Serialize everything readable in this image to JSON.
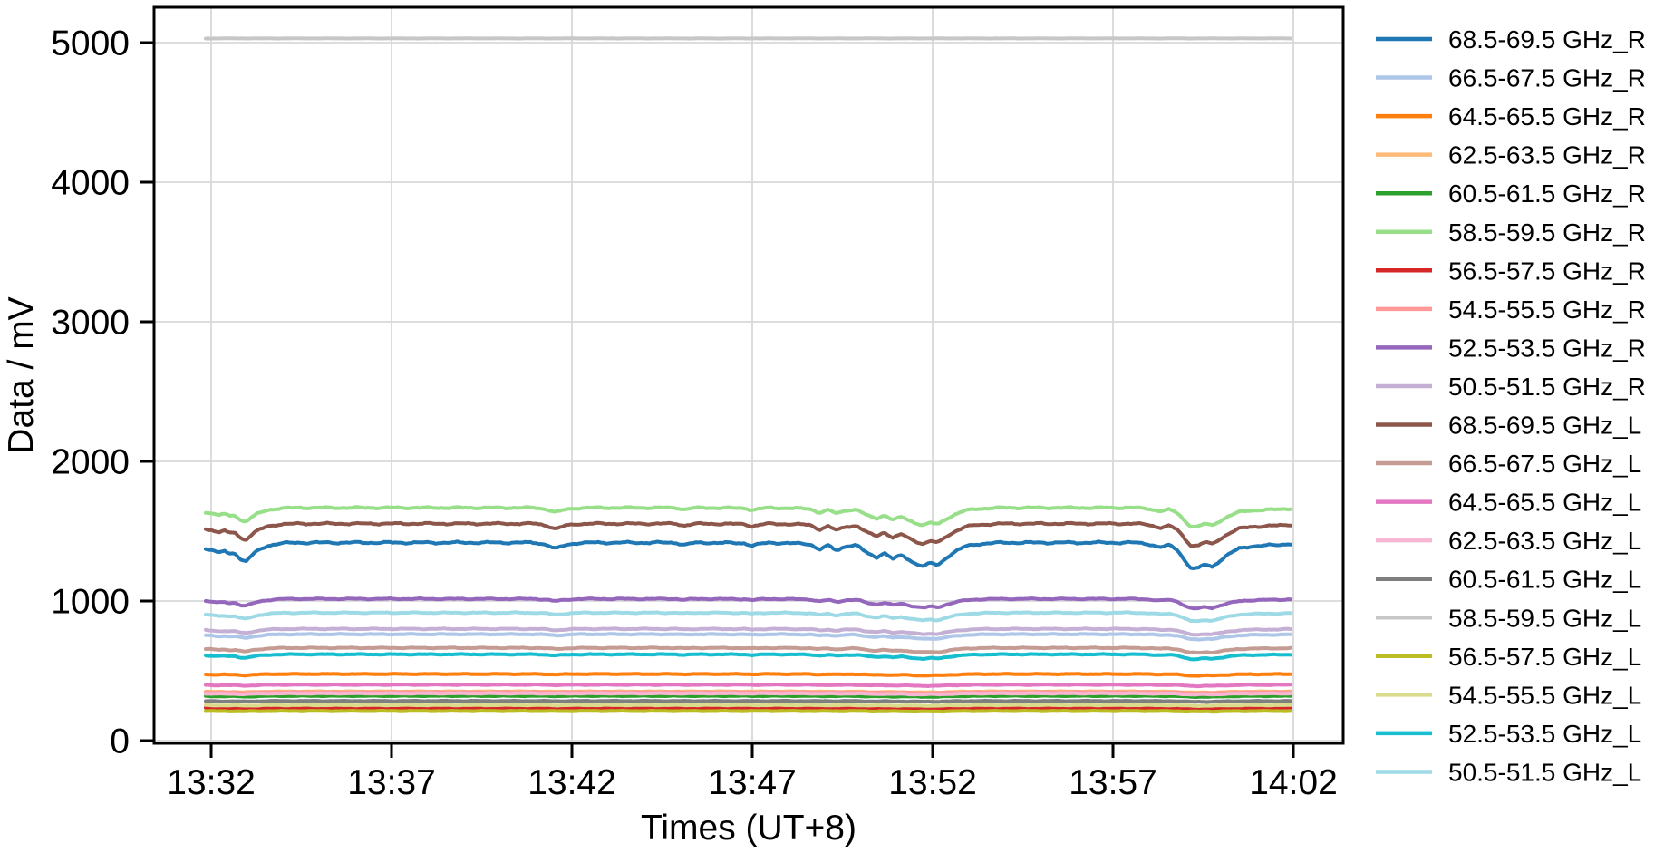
{
  "chart_data": {
    "type": "line",
    "title": "",
    "xlabel": "Times (UT+8)",
    "ylabel": "Data / mV",
    "x_tick_labels": [
      "13:32",
      "13:37",
      "13:42",
      "13:47",
      "13:52",
      "13:57",
      "14:02"
    ],
    "x_tick_minutes": [
      0,
      5,
      10,
      15,
      20,
      25,
      30
    ],
    "y_tick_values": [
      0,
      1000,
      2000,
      3000,
      4000,
      5000
    ],
    "y_tick_labels": [
      "0",
      "1000",
      "2000",
      "3000",
      "4000",
      "5000"
    ],
    "ylim": [
      -20,
      5255
    ],
    "xlim_minutes": [
      -1.6,
      31.4
    ],
    "time_span_minutes": [
      -0.15,
      29.95
    ],
    "grid": true,
    "legend_position": "right-outside",
    "grid_color": "#d8d8d8",
    "spine_color": "#000000",
    "text_color": "#000000",
    "event_profile": {
      "description": "Shared normalized dip waveform w(t); each series value = base_mV - dip_amplitude_mV * w(t). Dips occur near 13:33, 13:41.5, 13:47, 13:49-13:52 and 13:59-14:00.",
      "t": [
        -0.15,
        0.0,
        0.2,
        0.35,
        0.5,
        0.65,
        0.8,
        0.95,
        1.1,
        1.3,
        1.55,
        1.9,
        2.4,
        9.0,
        9.3,
        9.55,
        9.8,
        10.1,
        10.5,
        12.9,
        13.1,
        13.35,
        13.6,
        14.8,
        15.0,
        15.25,
        15.5,
        16.6,
        16.85,
        17.1,
        17.35,
        17.6,
        17.9,
        18.2,
        18.45,
        18.65,
        18.9,
        19.15,
        19.5,
        19.75,
        19.95,
        20.15,
        20.4,
        20.65,
        20.9,
        21.2,
        21.6,
        22.0,
        25.6,
        26.0,
        26.3,
        26.55,
        26.8,
        27.0,
        27.15,
        27.35,
        27.55,
        27.75,
        27.95,
        28.2,
        28.5,
        28.8,
        29.1,
        29.5,
        29.95
      ],
      "w": [
        0.22,
        0.28,
        0.4,
        0.3,
        0.44,
        0.36,
        0.62,
        0.74,
        0.52,
        0.3,
        0.12,
        0.03,
        0.0,
        0.0,
        0.08,
        0.24,
        0.1,
        0.02,
        0.0,
        0.0,
        0.09,
        0.02,
        0.0,
        0.02,
        0.12,
        0.04,
        0.0,
        0.05,
        0.26,
        0.12,
        0.3,
        0.12,
        0.1,
        0.42,
        0.55,
        0.38,
        0.62,
        0.48,
        0.78,
        0.9,
        0.78,
        0.86,
        0.55,
        0.32,
        0.15,
        0.06,
        0.02,
        0.0,
        0.0,
        0.05,
        0.18,
        0.1,
        0.28,
        0.7,
        0.95,
        1.0,
        0.82,
        0.92,
        0.7,
        0.45,
        0.22,
        0.14,
        0.12,
        0.09,
        0.04
      ]
    },
    "series": [
      {
        "name": "68.5-69.5 GHz_R",
        "color": "#1f77b4",
        "base_mV": 1418,
        "dip_amplitude_mV": 188
      },
      {
        "name": "66.5-67.5 GHz_R",
        "color": "#aec7e8",
        "base_mV": 762,
        "dip_amplitude_mV": 38
      },
      {
        "name": "64.5-65.5 GHz_R",
        "color": "#ff7f0e",
        "base_mV": 477,
        "dip_amplitude_mV": 12
      },
      {
        "name": "62.5-63.5 GHz_R",
        "color": "#ffbb78",
        "base_mV": 352,
        "dip_amplitude_mV": 8
      },
      {
        "name": "60.5-61.5 GHz_R",
        "color": "#2ca02c",
        "base_mV": 320,
        "dip_amplitude_mV": 7
      },
      {
        "name": "58.5-59.5 GHz_R",
        "color": "#98df8a",
        "base_mV": 1668,
        "dip_amplitude_mV": 138
      },
      {
        "name": "56.5-57.5 GHz_R",
        "color": "#d62728",
        "base_mV": 236,
        "dip_amplitude_mV": 5
      },
      {
        "name": "54.5-55.5 GHz_R",
        "color": "#ff9896",
        "base_mV": 347,
        "dip_amplitude_mV": 8
      },
      {
        "name": "52.5-53.5 GHz_R",
        "color": "#9467bd",
        "base_mV": 1015,
        "dip_amplitude_mV": 70
      },
      {
        "name": "50.5-51.5 GHz_R",
        "color": "#c5b0d5",
        "base_mV": 800,
        "dip_amplitude_mV": 42
      },
      {
        "name": "68.5-69.5 GHz_L",
        "color": "#8c564b",
        "base_mV": 1554,
        "dip_amplitude_mV": 160
      },
      {
        "name": "66.5-67.5 GHz_L",
        "color": "#c49c94",
        "base_mV": 664,
        "dip_amplitude_mV": 36
      },
      {
        "name": "64.5-65.5 GHz_L",
        "color": "#e377c2",
        "base_mV": 400,
        "dip_amplitude_mV": 9
      },
      {
        "name": "62.5-63.5 GHz_L",
        "color": "#f7b6d2",
        "base_mV": 338,
        "dip_amplitude_mV": 8
      },
      {
        "name": "60.5-61.5 GHz_L",
        "color": "#7f7f7f",
        "base_mV": 284,
        "dip_amplitude_mV": 6
      },
      {
        "name": "58.5-59.5 GHz_L",
        "color": "#c7c7c7",
        "base_mV": 5030,
        "dip_amplitude_mV": 0
      },
      {
        "name": "56.5-57.5 GHz_L",
        "color": "#bcbd22",
        "base_mV": 212,
        "dip_amplitude_mV": 4
      },
      {
        "name": "54.5-55.5 GHz_L",
        "color": "#dbdb8d",
        "base_mV": 254,
        "dip_amplitude_mV": 5
      },
      {
        "name": "52.5-53.5 GHz_L",
        "color": "#17becf",
        "base_mV": 618,
        "dip_amplitude_mV": 35
      },
      {
        "name": "50.5-51.5 GHz_L",
        "color": "#9edae5",
        "base_mV": 916,
        "dip_amplitude_mV": 62
      }
    ]
  }
}
